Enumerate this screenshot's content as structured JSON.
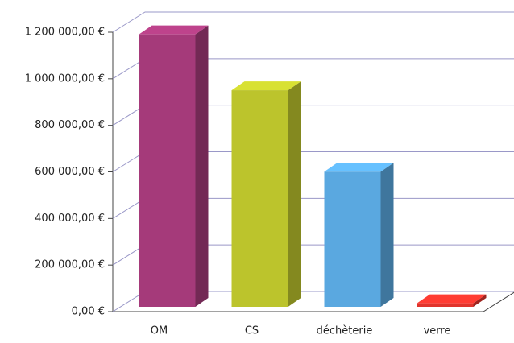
{
  "chart_data": {
    "type": "bar3d",
    "categories": [
      "OM",
      "CS",
      "déchèterie",
      "verre"
    ],
    "values": [
      1170000,
      930000,
      580000,
      15000
    ],
    "colors": [
      "#a53a7a",
      "#bcc42c",
      "#5aa8e0",
      "#e0342c"
    ],
    "ylim": [
      0,
      1200000
    ],
    "yticks": [
      {
        "value": 0,
        "label": "0,00 €"
      },
      {
        "value": 200000,
        "label": "200 000,00 €"
      },
      {
        "value": 400000,
        "label": "400 000,00 €"
      },
      {
        "value": 600000,
        "label": "600 000,00 €"
      },
      {
        "value": 800000,
        "label": "800 000,00 €"
      },
      {
        "value": 1000000,
        "label": "1 000 000,00 €"
      },
      {
        "value": 1200000,
        "label": "1 200 000,00 €"
      }
    ],
    "grid": true
  }
}
